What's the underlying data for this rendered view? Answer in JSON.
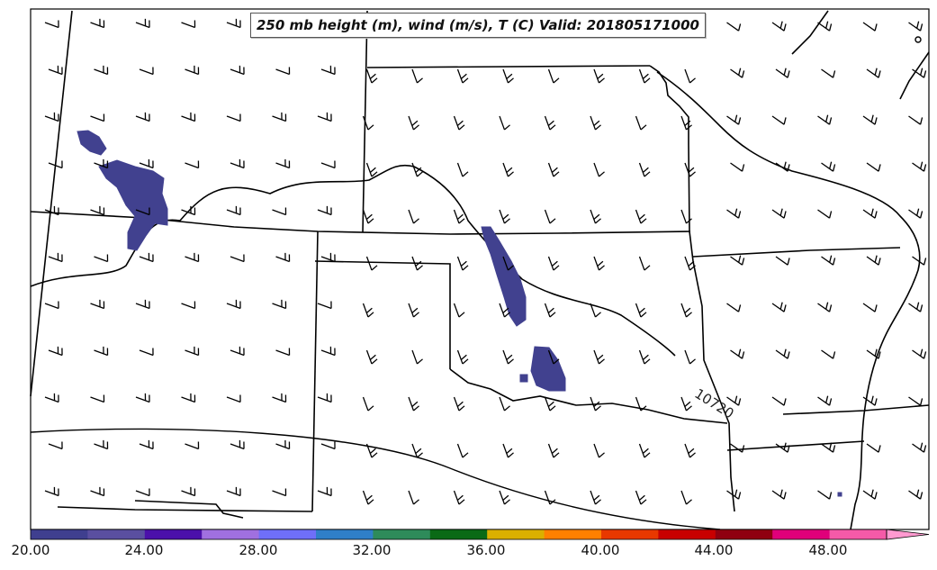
{
  "map": {
    "title": "250 mb height (m), wind (m/s), T (C) Valid: 201805171000",
    "contour_label": "10720"
  },
  "colorbar": {
    "colors": [
      "#3f3f8f",
      "#5a4fa0",
      "#4b10aa",
      "#a070e0",
      "#6f6ff8",
      "#2f7fc8",
      "#2e8b5a",
      "#0a6a16",
      "#dab000",
      "#ff8000",
      "#e83800",
      "#c80000",
      "#8f0010",
      "#e0007a",
      "#f55aa8",
      "#ff9ad0"
    ],
    "tick_labels": [
      "20.00",
      "24.00",
      "28.00",
      "32.00",
      "36.00",
      "40.00",
      "44.00",
      "48.00"
    ]
  },
  "shading": {
    "color": "#41418f"
  }
}
